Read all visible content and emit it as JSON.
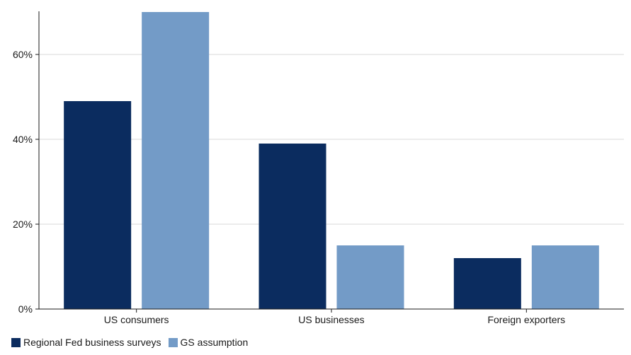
{
  "chart_data": {
    "type": "bar",
    "title": "",
    "xlabel": "",
    "ylabel": "",
    "categories": [
      "US consumers",
      "US businesses",
      "Foreign exporters"
    ],
    "series": [
      {
        "name": "Regional Fed business surveys",
        "values": [
          49,
          39,
          12
        ],
        "color": "#0b2c5f"
      },
      {
        "name": "GS assumption",
        "values": [
          70,
          15,
          15
        ],
        "color": "#739bc7"
      }
    ],
    "ylim": [
      0,
      70
    ],
    "yticks": [
      0,
      20,
      40,
      60
    ],
    "ytick_labels": [
      "0%",
      "20%",
      "40%",
      "60%"
    ],
    "grid": true,
    "legend_position": "bottom-left"
  }
}
